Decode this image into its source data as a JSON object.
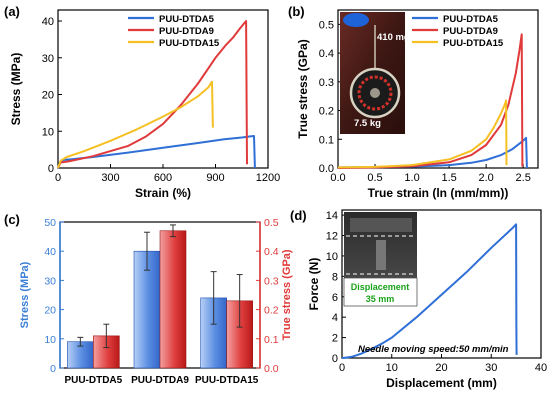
{
  "colors": {
    "blue": "#2f6fd6",
    "red": "#e03a3a",
    "yellow": "#f5c024",
    "axis_blue": "#3a7fd6",
    "axis_red": "#e03a3a",
    "text": "#000000",
    "green_text": "#19a319",
    "bar_blue_light": "#b7cff6",
    "bar_blue_dark": "#3466c8",
    "bar_red_light": "#f3a0a0",
    "bar_red_dark": "#c82020"
  },
  "chart_data": [
    {
      "panel": "(a)",
      "type": "line",
      "xlabel": "Strain (%)",
      "ylabel": "Stress (MPa)",
      "xlim": [
        0,
        1200
      ],
      "ylim": [
        0,
        43
      ],
      "xticks": [
        0,
        300,
        600,
        900,
        1200
      ],
      "yticks": [
        0,
        10,
        20,
        30,
        40
      ],
      "legend_position": "top-center",
      "series": [
        {
          "name": "PUU-DTDA5",
          "color": "blue",
          "x": [
            0,
            10,
            30,
            80,
            200,
            400,
            600,
            800,
            950,
            1050,
            1100,
            1120,
            1125
          ],
          "y": [
            0,
            1.5,
            2.2,
            2.4,
            3.0,
            4.2,
            5.5,
            6.8,
            7.8,
            8.3,
            8.6,
            8.7,
            0
          ]
        },
        {
          "name": "PUU-DTDA9",
          "color": "red",
          "x": [
            0,
            15,
            60,
            200,
            400,
            500,
            600,
            700,
            800,
            900,
            960,
            1000,
            1040,
            1075,
            1080
          ],
          "y": [
            0,
            1.5,
            1.8,
            3.2,
            6.0,
            8.5,
            12.0,
            17.0,
            23.0,
            30.0,
            33.5,
            35.5,
            38.0,
            40.0,
            1.0
          ]
        },
        {
          "name": "PUU-DTDA15",
          "color": "yellow",
          "x": [
            0,
            15,
            50,
            150,
            300,
            450,
            600,
            700,
            800,
            860,
            880,
            885
          ],
          "y": [
            0,
            2.0,
            3.0,
            4.6,
            7.4,
            10.5,
            14.0,
            16.5,
            19.5,
            22.0,
            23.5,
            11.0
          ]
        }
      ]
    },
    {
      "panel": "(b)",
      "type": "line",
      "xlabel": "True strain (ln (mm/mm))",
      "ylabel": "True stress (GPa)",
      "xlim": [
        0,
        2.7
      ],
      "ylim": [
        0,
        0.55
      ],
      "xticks": [
        0.0,
        0.5,
        1.0,
        1.5,
        2.0,
        2.5
      ],
      "yticks": [
        0.0,
        0.1,
        0.2,
        0.3,
        0.4,
        0.5
      ],
      "legend_position": "top-right",
      "inset_labels": [
        "410 mg",
        "7.5 kg"
      ],
      "series": [
        {
          "name": "PUU-DTDA5",
          "color": "blue",
          "x": [
            0,
            0.5,
            1.0,
            1.5,
            1.8,
            2.0,
            2.2,
            2.35,
            2.45,
            2.52,
            2.54,
            2.55
          ],
          "y": [
            0.002,
            0.003,
            0.005,
            0.01,
            0.018,
            0.028,
            0.045,
            0.065,
            0.085,
            0.1,
            0.105,
            0.0
          ]
        },
        {
          "name": "PUU-DTDA9",
          "color": "red",
          "x": [
            0,
            0.5,
            1.0,
            1.5,
            1.8,
            2.0,
            2.2,
            2.3,
            2.4,
            2.45,
            2.48,
            2.49
          ],
          "y": [
            0.0,
            0.002,
            0.006,
            0.02,
            0.045,
            0.08,
            0.15,
            0.22,
            0.33,
            0.41,
            0.465,
            0.005
          ]
        },
        {
          "name": "PUU-DTDA15",
          "color": "yellow",
          "x": [
            0,
            0.5,
            1.0,
            1.5,
            1.8,
            2.0,
            2.1,
            2.2,
            2.25,
            2.27,
            2.275
          ],
          "y": [
            0.002,
            0.004,
            0.01,
            0.03,
            0.06,
            0.1,
            0.14,
            0.19,
            0.22,
            0.235,
            0.01
          ]
        }
      ]
    },
    {
      "panel": "(c)",
      "type": "bar",
      "categories": [
        "PUU-DTDA5",
        "PUU-DTDA9",
        "PUU-DTDA15"
      ],
      "ylabel": "Stress (MPa)",
      "ylabel_right": "True stress (GPa)",
      "ylim": [
        0,
        50
      ],
      "ylim_right": [
        0,
        0.5
      ],
      "yticks": [
        0,
        10,
        20,
        30,
        40,
        50
      ],
      "yticks_right": [
        0.0,
        0.1,
        0.2,
        0.3,
        0.4,
        0.5
      ],
      "series": [
        {
          "name": "Stress",
          "axis": "left",
          "color": "blue",
          "values": [
            9,
            40,
            24
          ],
          "errors": [
            1.5,
            6.5,
            9
          ]
        },
        {
          "name": "True stress",
          "axis": "right",
          "color": "red",
          "values": [
            0.11,
            0.47,
            0.23
          ],
          "errors": [
            0.04,
            0.02,
            0.09
          ]
        }
      ]
    },
    {
      "panel": "(d)",
      "type": "line",
      "xlabel": "Displacement (mm)",
      "ylabel": "Force (N)",
      "xlim": [
        0,
        40
      ],
      "ylim": [
        0,
        14.5
      ],
      "xticks": [
        0,
        10,
        20,
        30,
        40
      ],
      "yticks": [
        0,
        2,
        4,
        6,
        8,
        10,
        12,
        14
      ],
      "inset_labels": [
        "Displacement",
        "35 mm"
      ],
      "annotation": "Needle moving speed:50 mm/min",
      "series": [
        {
          "color": "blue",
          "x": [
            0,
            1,
            2,
            4,
            6,
            8,
            10,
            15,
            20,
            25,
            30,
            34,
            35,
            35.05,
            35.1
          ],
          "y": [
            0,
            0.05,
            0.12,
            0.45,
            0.9,
            1.4,
            2.0,
            4.0,
            6.2,
            8.4,
            10.8,
            12.6,
            13.1,
            2.5,
            0.3
          ]
        }
      ]
    }
  ]
}
